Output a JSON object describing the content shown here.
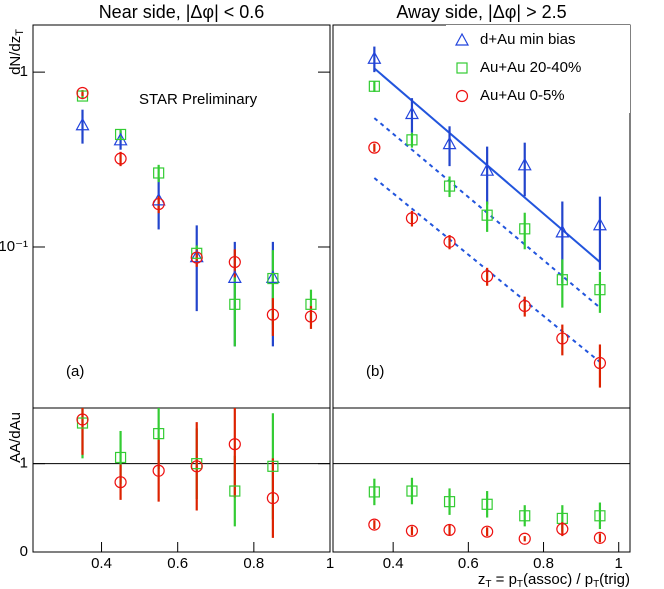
{
  "chart_data": [
    {
      "type": "scatter",
      "title": "Near side,  |Δφ| < 0.6",
      "ylabel": {
        "text": "dN/dz",
        "sub": "T"
      },
      "annotations": [
        "STAR Preliminary",
        "(a)"
      ],
      "yscale": "log",
      "xlim": [
        0.22,
        1.0
      ],
      "ylim": [
        0.012,
        1.86
      ],
      "yticks": [
        {
          "value": 0.1,
          "label": "10⁻¹"
        },
        1
      ],
      "x": [
        0.35,
        0.45,
        0.55,
        0.65,
        0.75,
        0.85,
        0.95
      ],
      "series": [
        {
          "marker": "triangle",
          "color": "#2244dd",
          "values": [
            0.5,
            0.41,
            0.186,
            0.088,
            0.067,
            0.067,
            null
          ],
          "errors": [
            0.11,
            0.05,
            0.06,
            0.045,
            0.04,
            0.04,
            null
          ]
        },
        {
          "marker": "square",
          "color": "#33cc33",
          "values": [
            0.73,
            0.44,
            0.265,
            0.092,
            0.047,
            0.066,
            0.047
          ],
          "errors": [
            0.03,
            0.03,
            0.03,
            0.01,
            0.02,
            0.03,
            0.01
          ]
        },
        {
          "marker": "circle",
          "color": "#ee1111",
          "values": [
            0.76,
            0.32,
            0.176,
            0.087,
            0.082,
            0.041,
            0.04
          ],
          "errors": [
            0.03,
            0.03,
            0.02,
            0.01,
            0.015,
            0.01,
            0.006
          ]
        }
      ]
    },
    {
      "type": "scatter",
      "title": "Away side,  |Δφ| > 2.5",
      "annotations": [
        "(b)"
      ],
      "yscale": "log",
      "xlim": [
        0.24,
        1.03
      ],
      "ylim": [
        0.012,
        1.86
      ],
      "legend": "top-right",
      "x": [
        0.35,
        0.45,
        0.55,
        0.65,
        0.75,
        0.85,
        0.95
      ],
      "series": [
        {
          "name": "d+Au min bias",
          "marker": "triangle",
          "color": "#2244dd",
          "values": [
            1.2,
            0.58,
            0.39,
            0.275,
            0.295,
            0.122,
            0.134
          ],
          "errors": [
            0.2,
            0.13,
            0.1,
            0.1,
            0.1,
            0.06,
            0.06
          ]
        },
        {
          "name": "Au+Au 20-40%",
          "marker": "square",
          "color": "#33cc33",
          "values": [
            0.83,
            0.41,
            0.223,
            0.152,
            0.127,
            0.065,
            0.057
          ],
          "errors": [
            0.06,
            0.04,
            0.03,
            0.03,
            0.03,
            0.02,
            0.015
          ]
        },
        {
          "name": "Au+Au 0-5%",
          "marker": "circle",
          "color": "#ee1111",
          "values": [
            0.37,
            0.146,
            0.107,
            0.068,
            0.046,
            0.03,
            0.0217
          ],
          "errors": [
            0.02,
            0.015,
            0.01,
            0.008,
            0.006,
            0.006,
            0.006
          ]
        }
      ],
      "lines": [
        {
          "color": "#2255dd",
          "style": "solid",
          "x": [
            0.35,
            0.95
          ],
          "values": [
            1.05,
            0.082
          ]
        },
        {
          "color": "#2255dd",
          "style": "dotted",
          "x": [
            0.35,
            0.95
          ],
          "values": [
            0.546,
            0.045
          ]
        },
        {
          "color": "#2255dd",
          "style": "dotted",
          "x": [
            0.35,
            0.95
          ],
          "values": [
            0.248,
            0.022
          ]
        }
      ]
    },
    {
      "type": "scatter",
      "ylabel": {
        "text": "AA/dAu"
      },
      "yscale": "linear",
      "xlim": [
        0.22,
        1.0
      ],
      "ylim": [
        0,
        1.63
      ],
      "yticks": [
        0,
        1
      ],
      "xticks": [
        0.4,
        0.6,
        0.8,
        1
      ],
      "reference_line": 1,
      "x": [
        0.35,
        0.45,
        0.55,
        0.65,
        0.75,
        0.85,
        0.95
      ],
      "series": [
        {
          "marker": "square",
          "color": "#33cc33",
          "values": [
            1.46,
            1.07,
            1.34,
            1.0,
            0.69,
            0.97,
            null
          ],
          "errors": [
            0.4,
            0.3,
            0.4,
            0.4,
            0.4,
            0.6,
            null
          ]
        },
        {
          "marker": "circle",
          "color": "#ee1111",
          "values": [
            1.5,
            0.79,
            0.92,
            0.97,
            1.22,
            0.61,
            null
          ],
          "errors": [
            0.4,
            0.2,
            0.35,
            0.5,
            0.6,
            0.45,
            null
          ]
        }
      ]
    },
    {
      "type": "scatter",
      "yscale": "linear",
      "xlim": [
        0.24,
        1.03
      ],
      "ylim": [
        0,
        1.63
      ],
      "xticks": [
        0.4,
        0.6,
        0.8,
        1
      ],
      "reference_line": 1,
      "xlabel": [
        {
          "t": "z"
        },
        {
          "s": "T"
        },
        {
          "t": " = p"
        },
        {
          "s": "T"
        },
        {
          "t": "(assoc) /  p"
        },
        {
          "s": "T"
        },
        {
          "t": "(trig)"
        }
      ],
      "x": [
        0.35,
        0.45,
        0.55,
        0.65,
        0.75,
        0.85,
        0.95
      ],
      "series": [
        {
          "marker": "square",
          "color": "#33cc33",
          "values": [
            0.68,
            0.69,
            0.57,
            0.54,
            0.41,
            0.38,
            0.41
          ],
          "errors": [
            0.15,
            0.15,
            0.15,
            0.15,
            0.12,
            0.15,
            0.15
          ]
        },
        {
          "marker": "circle",
          "color": "#ee1111",
          "values": [
            0.31,
            0.24,
            0.25,
            0.23,
            0.15,
            0.26,
            0.16
          ],
          "errors": [
            0.05,
            0.05,
            0.06,
            0.05,
            0.03,
            0.08,
            0.05
          ]
        }
      ]
    }
  ]
}
